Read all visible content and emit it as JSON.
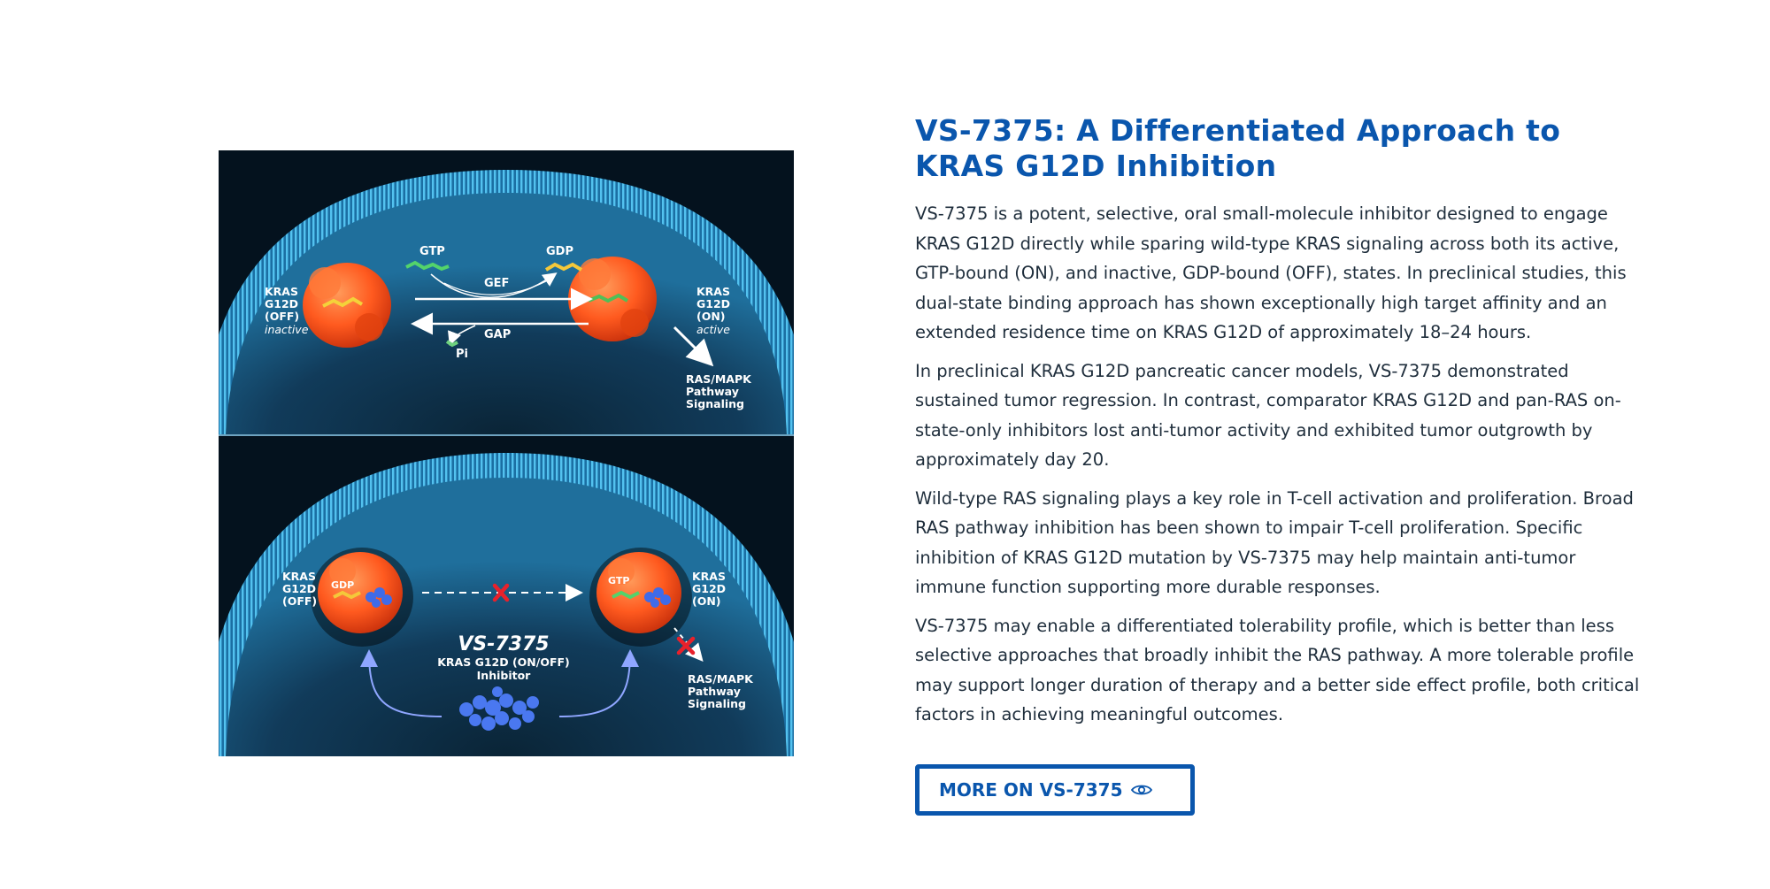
{
  "section": {
    "title": "VS-7375: A Differentiated Approach to KRAS G12D Inhibition",
    "paragraphs": [
      "VS-7375 is a potent, selective, oral small-molecule inhibitor designed to engage KRAS G12D directly while sparing wild-type KRAS signaling across both its active, GTP-bound (ON), and inactive, GDP-bound (OFF), states. In preclinical studies, this dual-state binding approach has shown exceptionally high target affinity and an extended residence time on KRAS G12D of approximately 18–24 hours.",
      "In preclinical KRAS G12D pancreatic cancer models, VS-7375 demonstrated sustained tumor regression. In contrast, comparator KRAS G12D and pan-RAS on-state-only inhibitors lost anti-tumor activity and exhibited tumor outgrowth by approximately day 20.",
      "Wild-type RAS signaling plays a key role in T-cell activation and proliferation. Broad RAS pathway inhibition has been shown to impair T-cell proliferation. Specific inhibition of KRAS G12D mutation by VS-7375 may help maintain anti-tumor immune function supporting more durable responses.",
      "VS-7375 may enable a differentiated tolerability profile, which is better than less selective approaches that broadly inhibit the RAS pathway. A more tolerable profile may support longer duration of therapy and a better side effect profile, both critical factors in achieving meaningful outcomes."
    ],
    "cta_label": "MORE ON VS-7375",
    "cta_icon": "eye-icon"
  },
  "figure": {
    "top_panel": {
      "left_protein_label": [
        "KRAS",
        "G12D",
        "(OFF)",
        "inactive"
      ],
      "right_protein_label": [
        "KRAS",
        "G12D",
        "(ON)",
        "active"
      ],
      "gtp_label": "GTP",
      "gdp_label": "GDP",
      "gef_label": "GEF",
      "gap_label": "GAP",
      "pi_label": "Pi",
      "pathway_label": [
        "RAS/MAPK",
        "Pathway",
        "Signaling"
      ]
    },
    "bottom_panel": {
      "left_protein_label": [
        "KRAS",
        "G12D",
        "(OFF)"
      ],
      "right_protein_label": [
        "KRAS",
        "G12D",
        "(ON)"
      ],
      "left_bound_label": "GDP",
      "right_bound_label": "GTP",
      "drug_name": "VS-7375",
      "drug_desc": [
        "KRAS G12D (ON/OFF)",
        "Inhibitor"
      ],
      "pathway_label": [
        "RAS/MAPK",
        "Pathway",
        "Signaling"
      ]
    },
    "colors": {
      "title_blue": "#0a56ad",
      "protein_orange": "#ff5a1f",
      "membrane_blue": "#2f9fd6",
      "block_red": "#e8212b"
    }
  }
}
